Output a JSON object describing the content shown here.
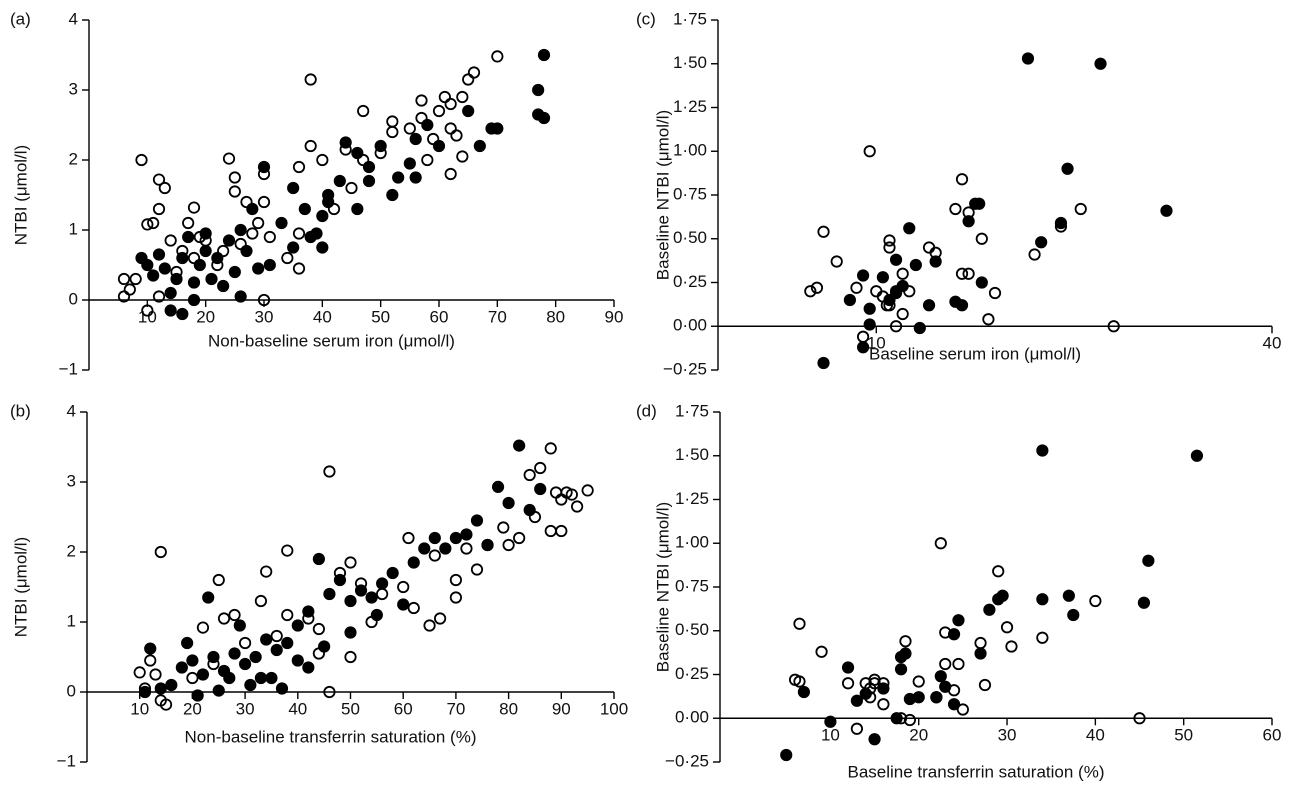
{
  "chart_data": [
    {
      "type": "scatter",
      "panel_label": "(a)",
      "x_label": "Non-baseline serum iron (μmol/l)",
      "y_label": "NTBI (μmol/l)",
      "xlim": [
        0,
        90
      ],
      "ylim": [
        -1,
        4
      ],
      "xticks": [
        10,
        20,
        30,
        40,
        50,
        60,
        70,
        80,
        90
      ],
      "yticks": [
        {
          "value": -1,
          "label": "−1"
        },
        0,
        1,
        2,
        3,
        4
      ],
      "series": [
        {
          "fill": "none",
          "color": "#000",
          "x": [
            9,
            12,
            13,
            11,
            10,
            12,
            14,
            17,
            18,
            19,
            24,
            25,
            25,
            27,
            30,
            30,
            29,
            38,
            36,
            38,
            40,
            44,
            47,
            50,
            52,
            52,
            55,
            57,
            57,
            59,
            60,
            61,
            62,
            62,
            63,
            64,
            65,
            66,
            70,
            62,
            64,
            58,
            47,
            45,
            42,
            36,
            36,
            34,
            30,
            6,
            7,
            6,
            8,
            10,
            12,
            15,
            18,
            22,
            23,
            26,
            28,
            31,
            16,
            20
          ],
          "values": [
            2.0,
            1.72,
            1.6,
            1.1,
            1.08,
            1.3,
            0.85,
            1.1,
            1.32,
            0.9,
            2.02,
            1.55,
            1.75,
            1.4,
            1.8,
            1.4,
            1.1,
            3.15,
            1.9,
            2.2,
            2.0,
            2.15,
            2.7,
            2.1,
            2.55,
            2.4,
            2.45,
            2.6,
            2.85,
            2.3,
            2.7,
            2.9,
            2.8,
            2.45,
            2.35,
            2.9,
            3.15,
            3.25,
            3.48,
            1.8,
            2.05,
            2.0,
            2.0,
            1.6,
            1.3,
            0.95,
            0.45,
            0.6,
            0.0,
            0.3,
            0.15,
            0.05,
            0.3,
            -0.15,
            0.05,
            0.4,
            0.6,
            0.5,
            0.7,
            0.8,
            0.95,
            0.9,
            0.7,
            0.85
          ]
        },
        {
          "fill": "#000",
          "color": "#000",
          "x": [
            78,
            77,
            77,
            78,
            70,
            69,
            67,
            65,
            60,
            58,
            56,
            55,
            53,
            52,
            50,
            48,
            46,
            44,
            43,
            41,
            40,
            39,
            40,
            37,
            35,
            33,
            31,
            30,
            28,
            26,
            27,
            25,
            24,
            22,
            21,
            20,
            19,
            18,
            17,
            16,
            15,
            14,
            13,
            12,
            11,
            10,
            9,
            16,
            14,
            18,
            23,
            26,
            29,
            35,
            38,
            48,
            56,
            46,
            41,
            20
          ],
          "values": [
            3.5,
            3.0,
            2.65,
            2.6,
            2.45,
            2.45,
            2.2,
            2.7,
            2.2,
            2.5,
            2.3,
            1.95,
            1.75,
            1.5,
            2.2,
            1.9,
            2.1,
            2.25,
            1.7,
            1.4,
            1.2,
            0.95,
            0.75,
            1.3,
            1.6,
            1.1,
            0.5,
            1.9,
            1.3,
            1.0,
            0.7,
            0.4,
            0.85,
            0.6,
            0.3,
            0.7,
            0.5,
            0.25,
            0.9,
            0.6,
            0.3,
            0.1,
            0.45,
            0.65,
            0.35,
            0.5,
            0.6,
            -0.2,
            -0.15,
            0.0,
            0.2,
            0.05,
            0.45,
            0.75,
            0.9,
            1.7,
            1.75,
            1.3,
            1.5,
            0.95
          ]
        }
      ]
    },
    {
      "type": "scatter",
      "panel_label": "(b)",
      "x_label": "Non-baseline transferrin saturation (%)",
      "y_label": "NTBI (μmol/l)",
      "xlim": [
        0,
        100
      ],
      "ylim": [
        -1,
        4
      ],
      "xticks": [
        10,
        20,
        30,
        40,
        50,
        60,
        70,
        80,
        90,
        100
      ],
      "yticks": [
        {
          "value": -1,
          "label": "−1"
        },
        0,
        1,
        2,
        3,
        4
      ],
      "series": [
        {
          "fill": "none",
          "color": "#000",
          "x": [
            14,
            25,
            38,
            34,
            46,
            48,
            50,
            61,
            66,
            65,
            67,
            70,
            72,
            76,
            79,
            80,
            82,
            84,
            86,
            88,
            89,
            90,
            91,
            92,
            93,
            95,
            88,
            90,
            85,
            74,
            70,
            60,
            56,
            52,
            50,
            46,
            44,
            42,
            38,
            33,
            28,
            26,
            22,
            12,
            10,
            11,
            14,
            15,
            13,
            20,
            24,
            30,
            36,
            44,
            54,
            62
          ],
          "values": [
            2.0,
            1.6,
            2.02,
            1.72,
            3.15,
            1.7,
            1.85,
            2.2,
            1.95,
            0.95,
            1.05,
            1.6,
            2.05,
            2.1,
            2.35,
            2.1,
            2.2,
            3.1,
            3.2,
            3.48,
            2.85,
            2.75,
            2.85,
            2.82,
            2.65,
            2.88,
            2.3,
            2.3,
            2.5,
            1.75,
            1.35,
            1.5,
            1.4,
            1.55,
            0.5,
            0.0,
            0.55,
            1.05,
            1.1,
            1.3,
            1.1,
            1.05,
            0.92,
            0.45,
            0.28,
            0.05,
            -0.12,
            -0.18,
            0.25,
            0.2,
            0.4,
            0.7,
            0.8,
            0.9,
            1.0,
            1.2
          ]
        },
        {
          "fill": "#000",
          "color": "#000",
          "x": [
            82,
            86,
            84,
            80,
            78,
            76,
            74,
            72,
            70,
            68,
            66,
            64,
            62,
            58,
            56,
            54,
            52,
            50,
            48,
            46,
            44,
            42,
            40,
            38,
            36,
            34,
            32,
            30,
            28,
            26,
            24,
            22,
            20,
            18,
            16,
            12,
            11,
            14,
            21,
            25,
            31,
            35,
            40,
            45,
            50,
            55,
            60,
            23,
            29,
            33,
            37,
            42,
            27,
            19
          ],
          "values": [
            3.52,
            2.9,
            2.6,
            2.7,
            2.93,
            2.1,
            2.45,
            2.25,
            2.2,
            2.05,
            2.2,
            2.05,
            1.85,
            1.7,
            1.55,
            1.35,
            1.45,
            1.3,
            1.6,
            1.4,
            1.9,
            1.15,
            0.95,
            0.7,
            0.6,
            0.75,
            0.5,
            0.4,
            0.55,
            0.3,
            0.5,
            0.25,
            0.45,
            0.35,
            0.1,
            0.62,
            0.0,
            0.05,
            -0.05,
            0.02,
            0.1,
            0.2,
            0.45,
            0.65,
            0.85,
            1.1,
            1.25,
            1.35,
            0.95,
            0.2,
            0.05,
            0.35,
            0.2,
            0.7
          ]
        }
      ]
    },
    {
      "type": "scatter",
      "panel_label": "(c)",
      "x_label": "Baseline serum iron (μmol/l)",
      "y_label": "Baseline NTBI (μmol/l)",
      "xlim": [
        -2,
        40
      ],
      "ylim": [
        -0.25,
        1.75
      ],
      "xticks": [
        10,
        40
      ],
      "yticks": [
        {
          "value": -0.25,
          "label": "−0·25"
        },
        {
          "value": 0,
          "label": "0·00"
        },
        {
          "value": 0.25,
          "label": "0·25"
        },
        {
          "value": 0.5,
          "label": "0·50"
        },
        {
          "value": 0.75,
          "label": "0·75"
        },
        {
          "value": 1,
          "label": "1·00"
        },
        {
          "value": 1.25,
          "label": "1·25"
        },
        {
          "value": 1.5,
          "label": "1·50"
        },
        {
          "value": 1.75,
          "label": "1·75"
        }
      ],
      "series": [
        {
          "fill": "none",
          "color": "#000",
          "x": [
            5,
            5.5,
            6,
            7,
            8.5,
            9,
            9.5,
            10,
            10.5,
            11,
            11,
            11,
            11.5,
            11.5,
            12,
            12,
            12.5,
            14,
            14.5,
            16,
            16.5,
            16.5,
            17,
            17,
            18,
            18.5,
            19,
            22,
            24,
            25.5,
            28,
            10.8
          ],
          "values": [
            0.2,
            0.22,
            0.54,
            0.37,
            0.22,
            -0.06,
            1.0,
            0.2,
            0.17,
            0.49,
            0.45,
            0.12,
            0.0,
            0.2,
            0.07,
            0.3,
            0.2,
            0.45,
            0.42,
            0.67,
            0.84,
            0.3,
            0.3,
            0.65,
            0.5,
            0.04,
            0.19,
            0.41,
            0.57,
            0.67,
            0.0,
            0.12
          ]
        },
        {
          "fill": "#000",
          "color": "#000",
          "x": [
            6,
            8,
            9,
            9,
            9.5,
            10.5,
            11,
            11.5,
            12,
            12.5,
            13,
            13.3,
            14,
            14.5,
            16,
            16.5,
            17,
            17.5,
            17.8,
            18,
            21.5,
            22.5,
            24,
            24.5,
            27,
            32,
            9.5,
            11.5
          ],
          "values": [
            -0.21,
            0.15,
            0.29,
            -0.12,
            0.1,
            0.28,
            0.15,
            0.38,
            0.23,
            0.56,
            0.35,
            -0.01,
            0.12,
            0.37,
            0.14,
            0.12,
            0.6,
            0.7,
            0.7,
            0.25,
            1.53,
            0.48,
            0.59,
            0.9,
            1.5,
            0.66,
            0.01,
            0.19
          ]
        }
      ]
    },
    {
      "type": "scatter",
      "panel_label": "(d)",
      "x_label": "Baseline transferrin saturation (%)",
      "y_label": "Baseline NTBI (μmol/l)",
      "xlim": [
        -2.5,
        60
      ],
      "ylim": [
        -0.25,
        1.75
      ],
      "xticks": [
        10,
        20,
        30,
        40,
        50,
        60
      ],
      "yticks": [
        {
          "value": -0.25,
          "label": "−0·25"
        },
        {
          "value": 0,
          "label": "0·00"
        },
        {
          "value": 0.25,
          "label": "0·25"
        },
        {
          "value": 0.5,
          "label": "0·50"
        },
        {
          "value": 0.75,
          "label": "0·75"
        },
        {
          "value": 1,
          "label": "1·00"
        },
        {
          "value": 1.25,
          "label": "1·25"
        },
        {
          "value": 1.5,
          "label": "1·50"
        },
        {
          "value": 1.75,
          "label": "1·75"
        }
      ],
      "series": [
        {
          "fill": "none",
          "color": "#000",
          "x": [
            6,
            6.5,
            6.5,
            9,
            12,
            13,
            14,
            14.5,
            14.5,
            15,
            15,
            16,
            16,
            18,
            18.5,
            19,
            20,
            22,
            22.5,
            23,
            23,
            24,
            24.5,
            25,
            27,
            27.5,
            29,
            30,
            30.5,
            34,
            40,
            45
          ],
          "values": [
            0.22,
            0.21,
            0.54,
            0.38,
            0.2,
            -0.06,
            0.2,
            0.17,
            0.12,
            0.22,
            0.2,
            0.08,
            0.2,
            0.0,
            0.44,
            -0.01,
            0.21,
            0.12,
            1.0,
            0.31,
            0.49,
            0.16,
            0.31,
            0.05,
            0.43,
            0.19,
            0.84,
            0.52,
            0.41,
            0.46,
            0.67,
            0.0
          ]
        },
        {
          "fill": "#000",
          "color": "#000",
          "x": [
            5,
            7,
            10,
            12,
            13,
            14,
            15,
            16,
            17.5,
            18,
            18,
            18.5,
            19,
            20,
            22,
            22.5,
            23,
            24,
            24,
            24.5,
            27,
            28,
            29,
            29.5,
            34,
            34,
            37,
            37.5,
            45.5,
            46,
            51.5
          ],
          "values": [
            -0.21,
            0.15,
            -0.02,
            0.29,
            0.1,
            0.14,
            -0.12,
            0.17,
            0.0,
            0.28,
            0.35,
            0.37,
            0.11,
            0.12,
            0.12,
            0.24,
            0.18,
            0.08,
            0.48,
            0.56,
            0.37,
            0.62,
            0.68,
            0.7,
            0.68,
            1.53,
            0.7,
            0.59,
            0.66,
            0.9,
            1.5
          ]
        }
      ]
    }
  ]
}
